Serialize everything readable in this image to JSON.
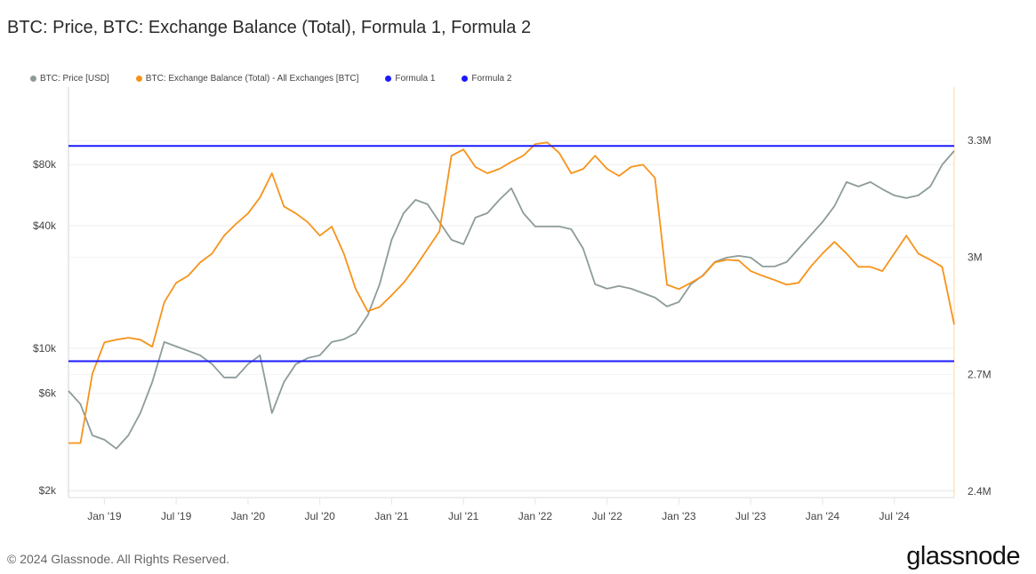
{
  "title": "BTC: Price, BTC: Exchange Balance (Total), Formula 1, Formula 2",
  "footer": "© 2024 Glassnode. All Rights Reserved.",
  "logo": "glassnode",
  "chart_data": {
    "type": "line",
    "title": "BTC: Price, BTC: Exchange Balance (Total), Formula 1, Formula 2",
    "legend_placement": "top-left",
    "grid": true,
    "x": {
      "start": "2018-10",
      "end": "2024-12",
      "ticks": [
        "Jan '19",
        "Jul '19",
        "Jan '20",
        "Jul '20",
        "Jan '21",
        "Jul '21",
        "Jan '22",
        "Jul '22",
        "Jan '23",
        "Jul '23",
        "Jan '24",
        "Jul '24"
      ],
      "tick_months": [
        3,
        9,
        15,
        21,
        27,
        33,
        39,
        45,
        51,
        57,
        63,
        69
      ]
    },
    "y_left": {
      "scale": "log",
      "range": [
        1845,
        192000
      ],
      "ticks": [
        {
          "label": "$80k",
          "value": 80000
        },
        {
          "label": "$40k",
          "value": 40000
        },
        {
          "label": "$10k",
          "value": 10000
        },
        {
          "label": "$6k",
          "value": 6000
        },
        {
          "label": "$2k",
          "value": 2000
        }
      ]
    },
    "y_right": {
      "scale": "linear",
      "unit": "M BTC",
      "range": [
        2.384,
        3.437
      ],
      "ticks": [
        {
          "label": "3.3M",
          "value": 3.3
        },
        {
          "label": "3M",
          "value": 3.0
        },
        {
          "label": "2.7M",
          "value": 2.7
        },
        {
          "label": "2.4M",
          "value": 2.4
        }
      ]
    },
    "series": [
      {
        "name": "BTC: Price [USD]",
        "axis": "left",
        "color": "#8d9c9a",
        "frequency": "monthly from 2018-10",
        "values": [
          6170,
          5310,
          3730,
          3550,
          3210,
          3730,
          4800,
          6820,
          10730,
          10200,
          9700,
          9230,
          8350,
          7180,
          7180,
          8350,
          9230,
          4800,
          6820,
          8350,
          8950,
          9230,
          10730,
          11060,
          11860,
          14510,
          20630,
          34100,
          46110,
          53620,
          50980,
          41690,
          34100,
          32430,
          43850,
          46110,
          53620,
          61100,
          46110,
          39640,
          39640,
          39640,
          38480,
          30840,
          20630,
          19620,
          20210,
          19620,
          18650,
          17740,
          16040,
          16870,
          20630,
          22810,
          26520,
          27890,
          28460,
          27890,
          25220,
          25220,
          26520,
          30840,
          35850,
          41690,
          49970,
          65560,
          62340,
          65560,
          60490,
          56380,
          54700,
          56380,
          62340,
          79750,
          93200
        ]
      },
      {
        "name": "BTC: Exchange Balance (Total) - All Exchanges [BTC]",
        "axis": "right",
        "color": "#f7931a",
        "frequency": "monthly from 2018-10",
        "values": [
          2.524,
          2.524,
          2.702,
          2.782,
          2.789,
          2.794,
          2.789,
          2.771,
          2.885,
          2.935,
          2.953,
          2.987,
          3.01,
          3.056,
          3.086,
          3.113,
          3.154,
          3.216,
          3.131,
          3.113,
          3.09,
          3.056,
          3.079,
          3.01,
          2.919,
          2.862,
          2.873,
          2.903,
          2.935,
          2.976,
          3.022,
          3.067,
          3.261,
          3.277,
          3.232,
          3.216,
          3.227,
          3.245,
          3.261,
          3.291,
          3.295,
          3.268,
          3.216,
          3.227,
          3.261,
          3.227,
          3.209,
          3.232,
          3.238,
          3.204,
          2.93,
          2.919,
          2.935,
          2.953,
          2.987,
          2.994,
          2.992,
          2.965,
          2.953,
          2.942,
          2.93,
          2.935,
          2.976,
          3.01,
          3.04,
          3.01,
          2.976,
          2.976,
          2.965,
          3.01,
          3.056,
          3.01,
          2.994,
          2.976,
          2.828
        ]
      },
      {
        "name": "Formula 1",
        "axis": "right",
        "color": "#1a1aff",
        "constant": 3.286
      },
      {
        "name": "Formula 2",
        "axis": "right",
        "color": "#1a1aff",
        "constant": 2.734
      }
    ]
  }
}
